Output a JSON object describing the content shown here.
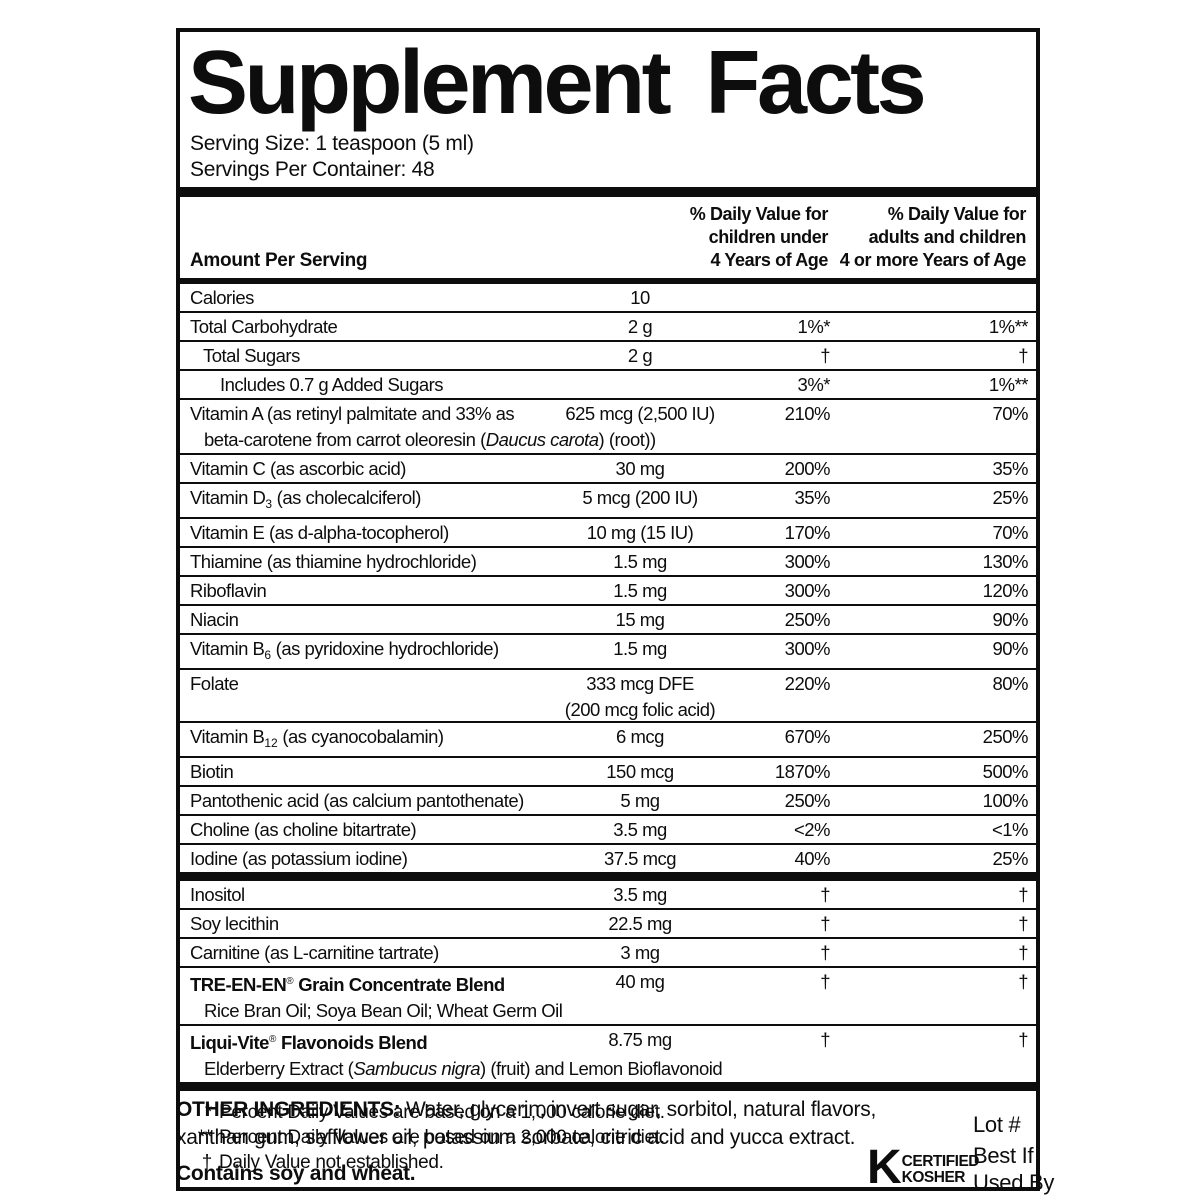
{
  "label": {
    "title": "Supplement Facts",
    "serving_size": "Serving Size: 1 teaspoon (5 ml)",
    "servings_per_container": "Servings Per Container: 48",
    "amount_per_serving": "Amount Per Serving",
    "child_header": {
      "line1": "% Daily Value for",
      "line2": "children under",
      "line3": "4 Years of Age"
    },
    "adult_header": {
      "line1": "% Daily Value for",
      "line2": "adults and children",
      "line3": "4 or more Years of Age"
    },
    "rows": [
      {
        "name": [
          {
            "t": "Calories"
          }
        ],
        "amount": [
          "10"
        ],
        "child": "",
        "adult": ""
      },
      {
        "name": [
          {
            "t": "Total Carbohydrate"
          }
        ],
        "amount": [
          "2 g"
        ],
        "child": "1%*",
        "adult": "1%**"
      },
      {
        "name": [
          {
            "t": "Total Sugars"
          }
        ],
        "indent": 1,
        "amount": [
          "2 g"
        ],
        "child": "†",
        "adult": "†"
      },
      {
        "name": [
          {
            "t": "Includes 0.7 g Added Sugars"
          }
        ],
        "indent": 2,
        "amount": [],
        "child": "3%*",
        "adult": "1%**"
      },
      {
        "name": [
          {
            "t": "Vitamin A (as retinyl palmitate and 33% as"
          }
        ],
        "sub": [
          {
            "t": "beta-carotene from carrot oleoresin ("
          },
          {
            "t": "Daucus carota",
            "i": true
          },
          {
            "t": ") (root))"
          }
        ],
        "amount": [
          "625 mcg (2,500 IU)"
        ],
        "child": "210%",
        "adult": "70%"
      },
      {
        "name": [
          {
            "t": "Vitamin C (as ascorbic acid)"
          }
        ],
        "amount": [
          "30 mg"
        ],
        "child": "200%",
        "adult": "35%"
      },
      {
        "name": [
          {
            "t": "Vitamin D"
          },
          {
            "t": "3",
            "s": true
          },
          {
            "t": " (as cholecalciferol)"
          }
        ],
        "amount": [
          "5 mcg (200 IU)"
        ],
        "child": "35%",
        "adult": "25%"
      },
      {
        "name": [
          {
            "t": "Vitamin E (as d-alpha-tocopherol)"
          }
        ],
        "amount": [
          "10 mg (15 IU)"
        ],
        "child": "170%",
        "adult": "70%"
      },
      {
        "name": [
          {
            "t": "Thiamine (as thiamine hydrochloride)"
          }
        ],
        "amount": [
          "1.5 mg"
        ],
        "child": "300%",
        "adult": "130%"
      },
      {
        "name": [
          {
            "t": "Riboflavin"
          }
        ],
        "amount": [
          "1.5 mg"
        ],
        "child": "300%",
        "adult": "120%"
      },
      {
        "name": [
          {
            "t": "Niacin"
          }
        ],
        "amount": [
          "15 mg"
        ],
        "child": "250%",
        "adult": "90%"
      },
      {
        "name": [
          {
            "t": "Vitamin B"
          },
          {
            "t": "6",
            "s": true
          },
          {
            "t": " (as pyridoxine hydrochloride)"
          }
        ],
        "amount": [
          "1.5 mg"
        ],
        "child": "300%",
        "adult": "90%"
      },
      {
        "name": [
          {
            "t": "Folate"
          }
        ],
        "amount": [
          "333 mcg DFE",
          "(200 mcg folic acid)"
        ],
        "child": "220%",
        "adult": "80%"
      },
      {
        "name": [
          {
            "t": "Vitamin B"
          },
          {
            "t": "12",
            "s": true
          },
          {
            "t": " (as cyanocobalamin)"
          }
        ],
        "amount": [
          "6 mcg"
        ],
        "child": "670%",
        "adult": "250%"
      },
      {
        "name": [
          {
            "t": "Biotin"
          }
        ],
        "amount": [
          "150 mcg"
        ],
        "child": "1870%",
        "adult": "500%"
      },
      {
        "name": [
          {
            "t": "Pantothenic acid (as calcium pantothenate)"
          }
        ],
        "amount": [
          "5 mg"
        ],
        "child": "250%",
        "adult": "100%"
      },
      {
        "name": [
          {
            "t": "Choline (as choline bitartrate)"
          }
        ],
        "amount": [
          "3.5 mg"
        ],
        "child": "<2%",
        "adult": "<1%"
      },
      {
        "name": [
          {
            "t": "Iodine (as potassium iodine)"
          }
        ],
        "amount": [
          "37.5 mcg"
        ],
        "child": "40%",
        "adult": "25%"
      },
      {
        "divider": true
      },
      {
        "name": [
          {
            "t": "Inositol"
          }
        ],
        "amount": [
          "3.5 mg"
        ],
        "child": "†",
        "adult": "†"
      },
      {
        "name": [
          {
            "t": "Soy lecithin"
          }
        ],
        "amount": [
          "22.5 mg"
        ],
        "child": "†",
        "adult": "†"
      },
      {
        "name": [
          {
            "t": "Carnitine (as L-carnitine tartrate)"
          }
        ],
        "amount": [
          "3 mg"
        ],
        "child": "†",
        "adult": "†"
      },
      {
        "name": [
          {
            "t": "TRE-EN-EN",
            "b": true
          },
          {
            "t": "®",
            "sup": true
          },
          {
            "t": " Grain Concentrate Blend",
            "b": true
          }
        ],
        "sub": [
          {
            "t": "Rice Bran Oil; Soya Bean Oil; Wheat Germ Oil"
          }
        ],
        "amount": [
          "40 mg"
        ],
        "child": "†",
        "adult": "†"
      },
      {
        "name": [
          {
            "t": "Liqui-Vite",
            "b": true
          },
          {
            "t": "®",
            "sup": true
          },
          {
            "t": " Flavonoids Blend",
            "b": true
          }
        ],
        "sub": [
          {
            "t": "Elderberry Extract ("
          },
          {
            "t": "Sambucus nigra",
            "i": true
          },
          {
            "t": ") (fruit) and Lemon Bioflavonoid"
          }
        ],
        "amount": [
          "8.75 mg"
        ],
        "child": "†",
        "adult": "†"
      },
      {
        "divider": true
      }
    ],
    "footnotes": [
      {
        "sym": "*",
        "text": "Percent Daily Values are based on a 1,000 calorie diet."
      },
      {
        "sym": "**",
        "text": "Percent Daily Values are based on a 2,000 calorie diet."
      },
      {
        "sym": "†",
        "text": "Daily Value not established."
      }
    ]
  },
  "bottom": {
    "other_ingredients": {
      "label": "OTHER INGREDIENTS:",
      "line1": " Water, glycerin, invert sugar, sorbitol, natural flavors,",
      "line2": "xanthan gum, safflower oil, potassium sorbate, citric acid and yucca extract."
    },
    "contains": "Contains soy and wheat.",
    "kosher": {
      "k": "K",
      "line1": "CERTIFIED",
      "line2": "KOSHER"
    },
    "lot": "Lot #",
    "best_if": "Best If",
    "used_by": "Used By"
  },
  "colors": {
    "ink": "#0d0d0d",
    "background": "#ffffff"
  }
}
